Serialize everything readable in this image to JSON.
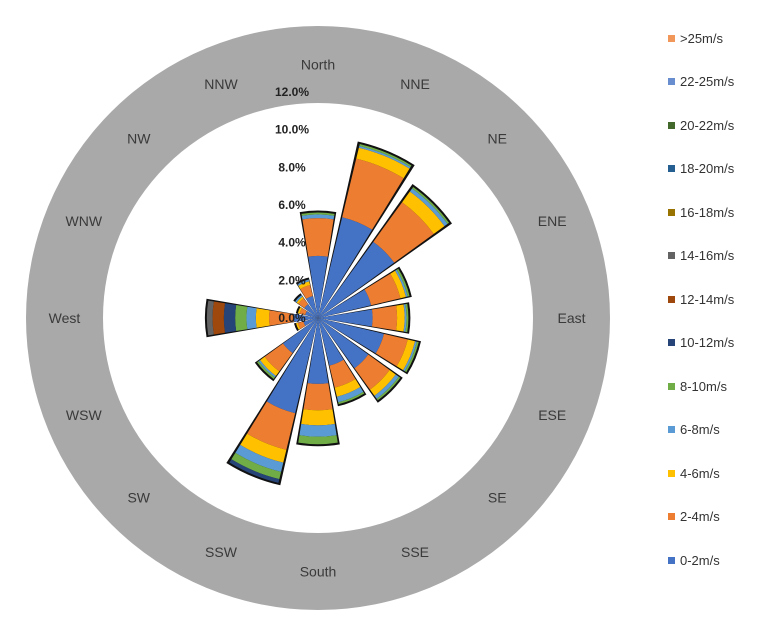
{
  "chart_data": {
    "type": "wind-rose",
    "radial_ticks": [
      "0.0%",
      "2.0%",
      "4.0%",
      "6.0%",
      "8.0%",
      "10.0%",
      "12.0%"
    ],
    "radial_max": 12,
    "directions": [
      "North",
      "NNE",
      "NE",
      "ENE",
      "East",
      "ESE",
      "SE",
      "SSE",
      "South",
      "SSW",
      "SW",
      "WSW",
      "West",
      "WNW",
      "NW",
      "NNW"
    ],
    "speed_bins": [
      "0-2m/s",
      "2-4m/s",
      "4-6m/s",
      "6-8m/s",
      "8-10m/s",
      "10-12m/s",
      "12-14m/s",
      "14-16m/s",
      "16-18m/s",
      "18-20m/s",
      "20-22m/s",
      "22-25m/s",
      ">25m/s"
    ],
    "legend_order": [
      ">25m/s",
      "22-25m/s",
      "20-22m/s",
      "18-20m/s",
      "16-18m/s",
      "14-16m/s",
      "12-14m/s",
      "10-12m/s",
      "8-10m/s",
      "6-8m/s",
      "4-6m/s",
      "2-4m/s",
      "0-2m/s"
    ],
    "bin_colors": [
      "#4472c4",
      "#ed7d31",
      "#ffc000",
      "#5b9bd5",
      "#70ad47",
      "#264478",
      "#9e480e",
      "#636363",
      "#997300",
      "#255e91",
      "#43682b",
      "#698ed0",
      "#f1975a"
    ],
    "series": [
      {
        "direction": "North",
        "values": [
          3.3,
          2.0,
          0.0,
          0.2,
          0.1,
          0,
          0,
          0,
          0,
          0,
          0,
          0,
          0
        ]
      },
      {
        "direction": "NNE",
        "values": [
          5.5,
          3.2,
          0.6,
          0.1,
          0.1,
          0,
          0,
          0,
          0,
          0,
          0,
          0,
          0
        ]
      },
      {
        "direction": "NE",
        "values": [
          5.0,
          2.6,
          0.7,
          0.2,
          0.1,
          0,
          0,
          0,
          0,
          0,
          0,
          0,
          0
        ]
      },
      {
        "direction": "ENE",
        "values": [
          2.9,
          1.6,
          0.3,
          0.1,
          0.1,
          0,
          0,
          0,
          0,
          0,
          0,
          0,
          0
        ]
      },
      {
        "direction": "East",
        "values": [
          2.9,
          1.3,
          0.4,
          0.1,
          0.1,
          0,
          0,
          0,
          0,
          0,
          0,
          0,
          0
        ]
      },
      {
        "direction": "ESE",
        "values": [
          3.6,
          1.3,
          0.4,
          0.1,
          0.1,
          0,
          0,
          0,
          0,
          0,
          0,
          0,
          0
        ]
      },
      {
        "direction": "SE",
        "values": [
          3.3,
          1.4,
          0.4,
          0.2,
          0.1,
          0,
          0,
          0,
          0,
          0,
          0,
          0,
          0
        ]
      },
      {
        "direction": "SSE",
        "values": [
          2.6,
          1.2,
          0.5,
          0.3,
          0.1,
          0,
          0,
          0,
          0,
          0,
          0,
          0,
          0
        ]
      },
      {
        "direction": "South",
        "values": [
          3.5,
          1.4,
          0.8,
          0.6,
          0.4,
          0,
          0,
          0,
          0,
          0,
          0,
          0,
          0
        ]
      },
      {
        "direction": "SSW",
        "values": [
          5.2,
          2.0,
          0.7,
          0.5,
          0.4,
          0.2,
          0,
          0,
          0,
          0,
          0,
          0,
          0
        ]
      },
      {
        "direction": "SW",
        "values": [
          2.3,
          1.2,
          0.3,
          0.1,
          0.1,
          0,
          0,
          0,
          0,
          0,
          0,
          0,
          0
        ]
      },
      {
        "direction": "WSW",
        "values": [
          0.8,
          0.3,
          0.1,
          0,
          0,
          0,
          0,
          0,
          0,
          0,
          0,
          0,
          0
        ]
      },
      {
        "direction": "West",
        "values": [
          1.3,
          1.3,
          0.7,
          0.5,
          0.6,
          0.6,
          0.6,
          0.3,
          0,
          0,
          0,
          0,
          0
        ]
      },
      {
        "direction": "WNW",
        "values": [
          0.7,
          0.3,
          0.1,
          0,
          0,
          0,
          0,
          0,
          0,
          0,
          0,
          0,
          0
        ]
      },
      {
        "direction": "NW",
        "values": [
          0.9,
          0.4,
          0.1,
          0.1,
          0,
          0,
          0,
          0,
          0,
          0,
          0,
          0,
          0
        ]
      },
      {
        "direction": "NNW",
        "values": [
          1.2,
          0.6,
          0.2,
          0.1,
          0,
          0,
          0,
          0,
          0,
          0,
          0,
          0,
          0
        ]
      }
    ],
    "colors": {
      "outer_ring": "#a9a9a9",
      "segment_outline": "#111111"
    },
    "legend_placement": "right"
  }
}
